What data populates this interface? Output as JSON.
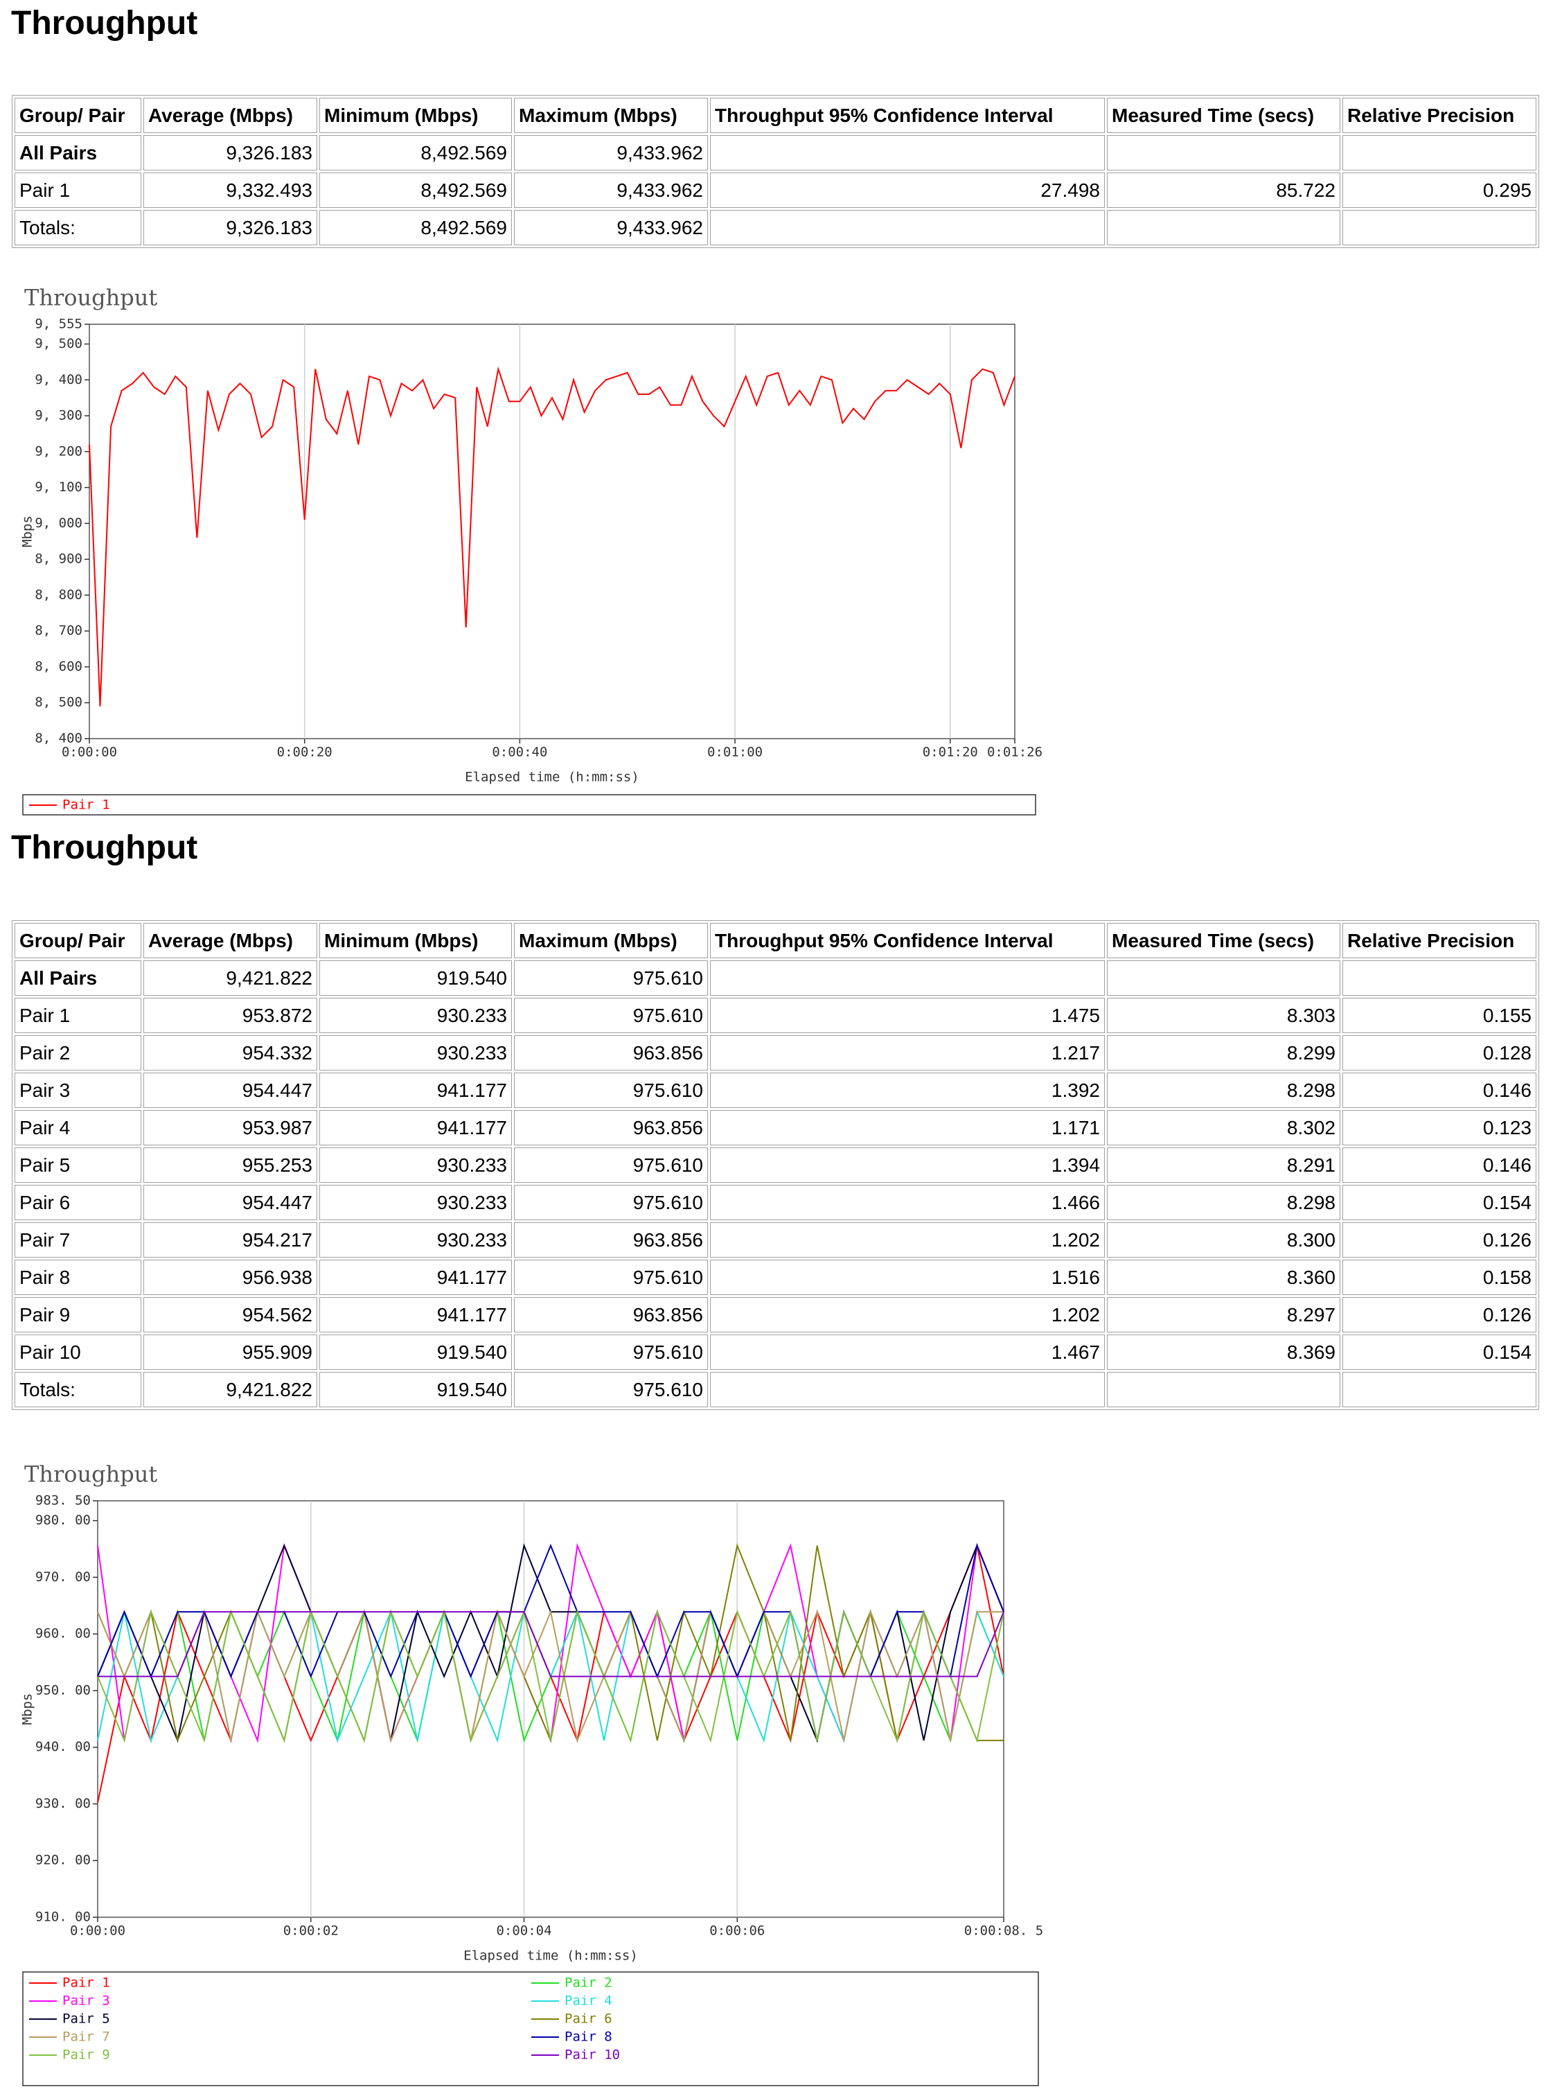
{
  "sections": [
    {
      "title": "Throughput",
      "table": {
        "header": [
          "Group/ Pair",
          "Average (Mbps)",
          "Minimum (Mbps)",
          "Maximum (Mbps)",
          "Throughput 95% Confidence Interval",
          "Measured Time (secs)",
          "Relative Precision"
        ],
        "rows": [
          [
            "All Pairs",
            "9,326.183",
            "8,492.569",
            "9,433.962",
            null,
            null,
            null
          ],
          [
            "Pair 1",
            "9,332.493",
            "8,492.569",
            "9,433.962",
            "27.498",
            "85.722",
            "0.295"
          ],
          [
            "Totals:",
            "9,326.183",
            "8,492.569",
            "9,433.962",
            null,
            null,
            null
          ]
        ]
      }
    },
    {
      "title": "Throughput",
      "table": {
        "header": [
          "Group/ Pair",
          "Average (Mbps)",
          "Minimum (Mbps)",
          "Maximum (Mbps)",
          "Throughput 95% Confidence Interval",
          "Measured Time (secs)",
          "Relative Precision"
        ],
        "rows": [
          [
            "All Pairs",
            "9,421.822",
            "919.540",
            "975.610",
            null,
            null,
            null
          ],
          [
            "Pair 1",
            "953.872",
            "930.233",
            "975.610",
            "1.475",
            "8.303",
            "0.155"
          ],
          [
            "Pair 2",
            "954.332",
            "930.233",
            "963.856",
            "1.217",
            "8.299",
            "0.128"
          ],
          [
            "Pair 3",
            "954.447",
            "941.177",
            "975.610",
            "1.392",
            "8.298",
            "0.146"
          ],
          [
            "Pair 4",
            "953.987",
            "941.177",
            "963.856",
            "1.171",
            "8.302",
            "0.123"
          ],
          [
            "Pair 5",
            "955.253",
            "930.233",
            "975.610",
            "1.394",
            "8.291",
            "0.146"
          ],
          [
            "Pair 6",
            "954.447",
            "930.233",
            "975.610",
            "1.466",
            "8.298",
            "0.154"
          ],
          [
            "Pair 7",
            "954.217",
            "930.233",
            "963.856",
            "1.202",
            "8.300",
            "0.126"
          ],
          [
            "Pair 8",
            "956.938",
            "941.177",
            "975.610",
            "1.516",
            "8.360",
            "0.158"
          ],
          [
            "Pair 9",
            "954.562",
            "941.177",
            "963.856",
            "1.202",
            "8.297",
            "0.126"
          ],
          [
            "Pair 10",
            "955.909",
            "919.540",
            "975.610",
            "1.467",
            "8.369",
            "0.154"
          ],
          [
            "Totals:",
            "9,421.822",
            "919.540",
            "975.610",
            null,
            null,
            null
          ]
        ]
      }
    }
  ],
  "chart_data": [
    {
      "type": "line",
      "title": "Throughput",
      "x_label": "Elapsed time (h:mm:ss)",
      "y_label": "Mbps",
      "grid": "x",
      "x": [
        0,
        1,
        2,
        3,
        4,
        5,
        6,
        7,
        8,
        9,
        10,
        11,
        12,
        13,
        14,
        15,
        16,
        17,
        18,
        19,
        20,
        21,
        22,
        23,
        24,
        25,
        26,
        27,
        28,
        29,
        30,
        31,
        32,
        33,
        34,
        35,
        36,
        37,
        38,
        39,
        40,
        41,
        42,
        43,
        44,
        45,
        46,
        47,
        48,
        49,
        50,
        51,
        52,
        53,
        54,
        55,
        56,
        57,
        58,
        59,
        60,
        61,
        62,
        63,
        64,
        65,
        66,
        67,
        68,
        69,
        70,
        71,
        72,
        73,
        74,
        75,
        76,
        77,
        78,
        79,
        80,
        81,
        82,
        83,
        84,
        85,
        86
      ],
      "xlim": [
        0,
        86
      ],
      "xticks": [
        {
          "value": 0,
          "label": "0:00:00"
        },
        {
          "value": 20,
          "label": "0:00:20"
        },
        {
          "value": 40,
          "label": "0:00:40"
        },
        {
          "value": 60,
          "label": "0:01:00"
        },
        {
          "value": 80,
          "label": "0:01:20"
        },
        {
          "value": 86,
          "label": "0:01:26"
        }
      ],
      "ylim": [
        8400,
        9555
      ],
      "yticks": [
        {
          "value": 8400,
          "label": "8, 400"
        },
        {
          "value": 8500,
          "label": "8, 500"
        },
        {
          "value": 8600,
          "label": "8, 600"
        },
        {
          "value": 8700,
          "label": "8, 700"
        },
        {
          "value": 8800,
          "label": "8, 800"
        },
        {
          "value": 8900,
          "label": "8, 900"
        },
        {
          "value": 9000,
          "label": "9, 000"
        },
        {
          "value": 9100,
          "label": "9, 100"
        },
        {
          "value": 9200,
          "label": "9, 200"
        },
        {
          "value": 9300,
          "label": "9, 300"
        },
        {
          "value": 9400,
          "label": "9, 400"
        },
        {
          "value": 9500,
          "label": "9, 500"
        },
        {
          "value": 9555,
          "label": "9, 555"
        }
      ],
      "series": [
        {
          "name": "Pair 1",
          "color": "#ff0000",
          "values": [
            9220,
            8490,
            9270,
            9370,
            9390,
            9420,
            9380,
            9360,
            9410,
            9380,
            8960,
            9370,
            9260,
            9360,
            9390,
            9360,
            9240,
            9270,
            9400,
            9380,
            9010,
            9430,
            9290,
            9250,
            9370,
            9220,
            9410,
            9400,
            9300,
            9390,
            9370,
            9400,
            9320,
            9360,
            9350,
            8710,
            9380,
            9270,
            9430,
            9340,
            9340,
            9380,
            9300,
            9350,
            9290,
            9400,
            9310,
            9370,
            9400,
            9410,
            9420,
            9360,
            9360,
            9380,
            9330,
            9330,
            9410,
            9340,
            9300,
            9270,
            9340,
            9410,
            9330,
            9410,
            9420,
            9330,
            9370,
            9330,
            9410,
            9400,
            9280,
            9320,
            9290,
            9340,
            9370,
            9370,
            9400,
            9380,
            9360,
            9390,
            9360,
            9210,
            9400,
            9430,
            9420,
            9330,
            9410
          ]
        }
      ]
    },
    {
      "type": "line",
      "title": "Throughput",
      "x_label": "Elapsed time (h:mm:ss)",
      "y_label": "Mbps",
      "grid": "x",
      "x": [
        0,
        0.25,
        0.5,
        0.75,
        1,
        1.25,
        1.5,
        1.75,
        2,
        2.25,
        2.5,
        2.75,
        3,
        3.25,
        3.5,
        3.75,
        4,
        4.25,
        4.5,
        4.75,
        5,
        5.25,
        5.5,
        5.75,
        6,
        6.25,
        6.5,
        6.75,
        7,
        7.25,
        7.5,
        7.75,
        8,
        8.25,
        8.5
      ],
      "xlim": [
        0,
        8.5
      ],
      "xticks": [
        {
          "value": 0,
          "label": "0:00:00"
        },
        {
          "value": 2,
          "label": "0:00:02"
        },
        {
          "value": 4,
          "label": "0:00:04"
        },
        {
          "value": 6,
          "label": "0:00:06"
        },
        {
          "value": 8.5,
          "label": "0:00:08. 5"
        }
      ],
      "ylim": [
        910,
        983.5
      ],
      "yticks": [
        {
          "value": 910,
          "label": "910. 00"
        },
        {
          "value": 920,
          "label": "920. 00"
        },
        {
          "value": 930,
          "label": "930. 00"
        },
        {
          "value": 940,
          "label": "940. 00"
        },
        {
          "value": 950,
          "label": "950. 00"
        },
        {
          "value": 960,
          "label": "960. 00"
        },
        {
          "value": 970,
          "label": "970. 00"
        },
        {
          "value": 980,
          "label": "980. 00"
        },
        {
          "value": 983.5,
          "label": "983. 50"
        }
      ],
      "series": [
        {
          "name": "Pair 1",
          "color": "#ff0000",
          "values": [
            930.2,
            952.5,
            941.2,
            963.9,
            952.5,
            941.2,
            963.9,
            952.5,
            941.2,
            952.5,
            963.9,
            941.2,
            952.5,
            963.9,
            941.2,
            952.5,
            963.9,
            952.5,
            941.2,
            963.9,
            952.5,
            963.9,
            941.2,
            952.5,
            963.9,
            952.5,
            941.2,
            963.9,
            952.5,
            963.9,
            941.2,
            952.5,
            963.9,
            975.6,
            952.5
          ]
        },
        {
          "name": "Pair 2",
          "color": "#22dd22",
          "values": [
            952.5,
            963.9,
            952.5,
            963.9,
            941.2,
            963.9,
            952.5,
            963.9,
            952.5,
            941.2,
            963.9,
            952.5,
            941.2,
            963.9,
            952.5,
            963.9,
            941.2,
            952.5,
            963.9,
            952.5,
            941.2,
            963.9,
            952.5,
            963.9,
            941.2,
            963.9,
            952.5,
            941.2,
            963.9,
            952.5,
            963.9,
            952.5,
            941.2,
            963.9,
            952.5
          ]
        },
        {
          "name": "Pair 3",
          "color": "#ff00ff",
          "values": [
            975.6,
            941.2,
            963.9,
            952.5,
            963.9,
            952.5,
            941.2,
            975.6,
            963.9,
            952.5,
            963.9,
            941.2,
            952.5,
            963.9,
            952.5,
            963.9,
            952.5,
            941.2,
            975.6,
            963.9,
            952.5,
            963.9,
            941.2,
            963.9,
            952.5,
            963.9,
            975.6,
            952.5,
            941.2,
            963.9,
            952.5,
            963.9,
            941.2,
            975.6,
            963.9
          ]
        },
        {
          "name": "Pair 4",
          "color": "#22dddd",
          "values": [
            941.2,
            963.9,
            941.2,
            952.5,
            963.9,
            941.2,
            963.9,
            952.5,
            963.9,
            941.2,
            952.5,
            963.9,
            941.2,
            963.9,
            952.5,
            941.2,
            963.9,
            952.5,
            963.9,
            941.2,
            963.9,
            952.5,
            941.2,
            963.9,
            952.5,
            941.2,
            963.9,
            952.5,
            941.2,
            963.9,
            952.5,
            963.9,
            941.2,
            963.9,
            952.5
          ]
        },
        {
          "name": "Pair 5",
          "color": "#000033",
          "values": [
            952.5,
            963.9,
            952.5,
            941.2,
            963.9,
            952.5,
            963.9,
            975.6,
            963.9,
            952.5,
            963.9,
            941.2,
            963.9,
            952.5,
            963.9,
            952.5,
            975.6,
            963.9,
            963.9,
            952.5,
            963.9,
            952.5,
            941.2,
            963.9,
            952.5,
            963.9,
            952.5,
            941.2,
            963.9,
            952.5,
            963.9,
            941.2,
            963.9,
            975.6,
            963.9
          ]
        },
        {
          "name": "Pair 6",
          "color": "#808000",
          "values": [
            963.9,
            952.5,
            963.9,
            941.2,
            952.5,
            963.9,
            952.5,
            941.2,
            963.9,
            952.5,
            941.2,
            963.9,
            952.5,
            963.9,
            941.2,
            963.9,
            952.5,
            941.2,
            963.9,
            952.5,
            963.9,
            941.2,
            963.9,
            952.5,
            975.6,
            963.9,
            941.2,
            975.6,
            952.5,
            963.9,
            941.2,
            963.9,
            952.5,
            941.2,
            941.2
          ]
        },
        {
          "name": "Pair 7",
          "color": "#b89c5c",
          "values": [
            963.9,
            952.5,
            963.9,
            952.5,
            963.9,
            941.2,
            963.9,
            952.5,
            963.9,
            952.5,
            963.9,
            941.2,
            952.5,
            963.9,
            941.2,
            963.9,
            952.5,
            963.9,
            941.2,
            952.5,
            963.9,
            952.5,
            941.2,
            963.9,
            952.5,
            963.9,
            952.5,
            963.9,
            941.2,
            963.9,
            952.5,
            963.9,
            941.2,
            963.9,
            963.9
          ]
        },
        {
          "name": "Pair 8",
          "color": "#0000aa",
          "values": [
            952.5,
            963.9,
            952.5,
            963.9,
            963.9,
            952.5,
            963.9,
            963.9,
            952.5,
            963.9,
            963.9,
            952.5,
            963.9,
            963.9,
            952.5,
            963.9,
            963.9,
            975.6,
            963.9,
            963.9,
            963.9,
            952.5,
            963.9,
            963.9,
            952.5,
            963.9,
            963.9,
            941.2,
            963.9,
            952.5,
            963.9,
            963.9,
            952.5,
            975.6,
            963.9
          ]
        },
        {
          "name": "Pair 9",
          "color": "#80c040",
          "values": [
            952.5,
            941.2,
            963.9,
            952.5,
            941.2,
            963.9,
            952.5,
            941.2,
            963.9,
            952.5,
            941.2,
            963.9,
            952.5,
            963.9,
            941.2,
            952.5,
            963.9,
            941.2,
            963.9,
            952.5,
            941.2,
            963.9,
            952.5,
            941.2,
            963.9,
            952.5,
            963.9,
            941.2,
            963.9,
            952.5,
            941.2,
            963.9,
            952.5,
            941.2,
            963.9
          ]
        },
        {
          "name": "Pair 10",
          "color": "#8000c0",
          "values": [
            952.5,
            952.5,
            952.5,
            952.5,
            963.9,
            963.9,
            963.9,
            963.9,
            963.9,
            963.9,
            963.9,
            963.9,
            963.9,
            963.9,
            963.9,
            963.9,
            963.9,
            952.5,
            952.5,
            952.5,
            952.5,
            952.5,
            952.5,
            952.5,
            952.5,
            952.5,
            952.5,
            952.5,
            952.5,
            952.5,
            952.5,
            952.5,
            952.5,
            952.5,
            963.9
          ]
        }
      ]
    }
  ]
}
